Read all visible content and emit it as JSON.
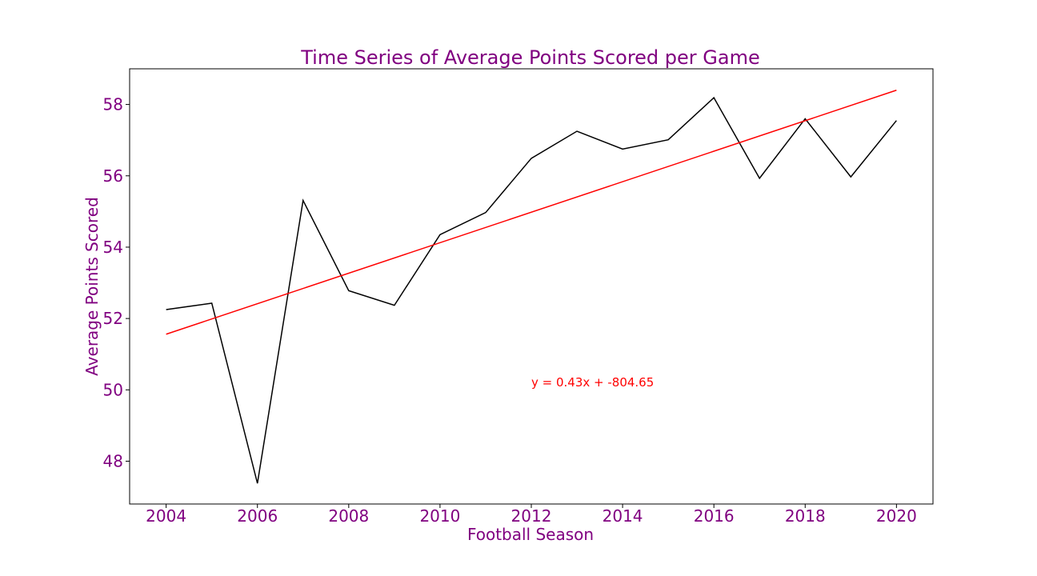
{
  "chart_data": {
    "type": "line",
    "title": "Time Series of Average Points Scored per Game",
    "xlabel": "Football Season",
    "ylabel": "Average Points Scored",
    "xlim": [
      2003.2,
      2020.8
    ],
    "ylim": [
      46.8,
      59.0
    ],
    "x_ticks": [
      2004,
      2006,
      2008,
      2010,
      2012,
      2014,
      2016,
      2018,
      2020
    ],
    "y_ticks": [
      48,
      50,
      52,
      54,
      56,
      58
    ],
    "grid": false,
    "series": [
      {
        "color": "#000000",
        "x": [
          2004,
          2005,
          2006,
          2007,
          2008,
          2009,
          2010,
          2011,
          2012,
          2013,
          2014,
          2015,
          2016,
          2017,
          2018,
          2019,
          2020
        ],
        "y": [
          52.25,
          52.43,
          47.38,
          55.31,
          52.78,
          52.37,
          54.35,
          54.97,
          56.49,
          57.25,
          56.75,
          57.01,
          58.19,
          55.93,
          57.6,
          55.97,
          57.55
        ]
      },
      {
        "color": "#ff0000",
        "x": [
          2004,
          2020
        ],
        "y": [
          51.56,
          58.4
        ]
      }
    ],
    "annotation": {
      "text": "y = 0.43x + -804.65",
      "x": 2012,
      "y": 50.1,
      "color": "#ff0000"
    },
    "text_color": "#800080"
  }
}
